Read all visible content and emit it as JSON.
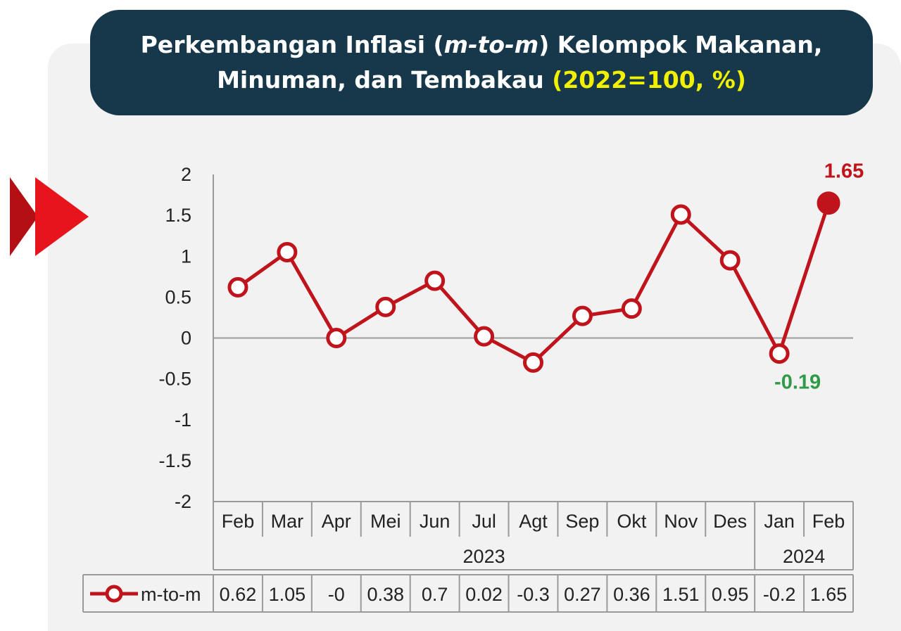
{
  "title": {
    "line1_prefix": "Perkembangan Inflasi (",
    "line1_italic": "m-to-m",
    "line1_suffix": ") Kelompok Makanan,",
    "line2_main": "Minuman, dan Tembakau ",
    "line2_highlight": "(2022=100, %)"
  },
  "colors": {
    "series": "#c0141c",
    "negative_label": "#2e9a48",
    "title_bg": "#17384a",
    "highlight": "#f0f000",
    "arrow": "#e8141c"
  },
  "chart_data": {
    "type": "line",
    "categories": [
      "Feb",
      "Mar",
      "Apr",
      "Mei",
      "Jun",
      "Jul",
      "Agt",
      "Sep",
      "Okt",
      "Nov",
      "Des",
      "Jan",
      "Feb"
    ],
    "years": [
      {
        "label": "2023",
        "span": 11
      },
      {
        "label": "2024",
        "span": 2
      }
    ],
    "series": [
      {
        "name": "m-to-m",
        "values": [
          0.62,
          1.05,
          0,
          0.38,
          0.7,
          0.02,
          -0.3,
          0.27,
          0.36,
          1.51,
          0.95,
          -0.19,
          1.65
        ],
        "table_values": [
          "0.62",
          "1.05",
          "-0",
          "0.38",
          "0.7",
          "0.02",
          "-0.3",
          "0.27",
          "0.36",
          "1.51",
          "0.95",
          "-0.2",
          "1.65"
        ]
      }
    ],
    "ylim": [
      -2,
      2
    ],
    "yticks": [
      "2",
      "1.5",
      "1",
      "0.5",
      "0",
      "-0.5",
      "-1",
      "-1.5",
      "-2"
    ],
    "annotations": [
      {
        "index": 12,
        "text": "1.65"
      },
      {
        "index": 11,
        "text": "-0.19"
      }
    ],
    "legend": "data-table"
  }
}
